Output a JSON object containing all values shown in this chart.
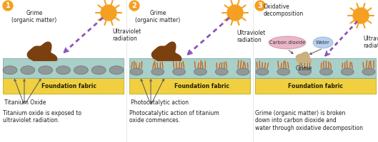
{
  "bg_color": "#ffffff",
  "fabric_color": "#f0d040",
  "tio2_layer_color": "#a8cfc8",
  "tio2_circle_color": "#8ab0a8",
  "grime_color": "#7a4010",
  "sun_color": "#f5a020",
  "uv_color": "#8855bb",
  "orange_circle_color": "#f5a020",
  "label_color": "#222222",
  "desc_color": "#222222",
  "carbon_dioxide_color": "#e8b0c0",
  "water_color": "#b0ccee",
  "grime_small_color": "#c8b080",
  "bristle_color": "#d06010",
  "panel1_label": "Titanium Oxide",
  "panel2_label": "Photocatalytic action",
  "panel1_desc": "Titanium oxide is exposed to\nultraviolet radiation.",
  "panel2_desc": "Photocatalytic action of titanium\noxide commences.",
  "panel3_desc": "Grime (organic matter) is broken\ndown into carbon dioxide and\nwater through oxidative decomposition",
  "panel3_top_label": "Oxidative\ndecomposition",
  "panel3_carbon_label": "Carbon dioxide",
  "panel3_water_label": "Water",
  "panel3_grime_label": "Grime",
  "panel3_uv_label": "Ultraviolet\nradiation",
  "panel1_grime_label": "Grime\n(organic matter)",
  "panel1_uv_label": "Ultraviolet\nradiation",
  "panel2_grime_label": "Grime\n(organic matter)",
  "panel2_uv_label": "Ultraviolet\nradiation",
  "fabric_label": "Foundation fabric"
}
